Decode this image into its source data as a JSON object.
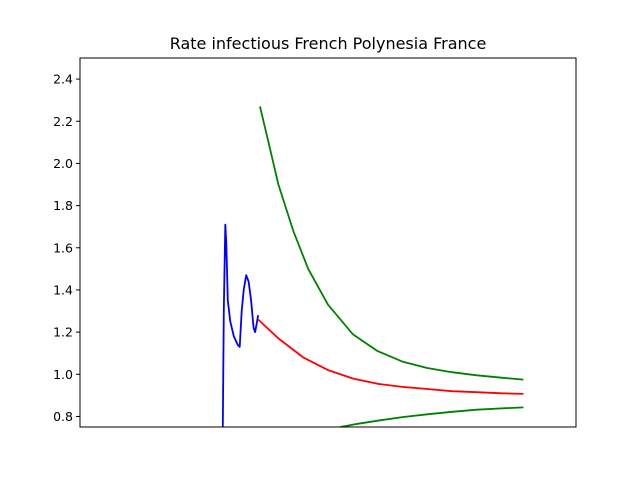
{
  "chart_data": {
    "type": "line",
    "title": "Rate infectious French Polynesia France",
    "xlabel": "",
    "ylabel": "",
    "xlim": [
      0,
      100
    ],
    "ylim": [
      0.75,
      2.5
    ],
    "x_ticks_visible": false,
    "y_ticks": [
      "0.8",
      "1.0",
      "1.2",
      "1.4",
      "1.6",
      "1.8",
      "2.0",
      "2.2",
      "2.4"
    ],
    "grid": false,
    "legend": "none",
    "series": [
      {
        "color": "#0000ff",
        "points": [
          [
            28.8,
            0.75
          ],
          [
            29.0,
            1.3
          ],
          [
            29.3,
            1.71
          ],
          [
            29.5,
            1.62
          ],
          [
            29.8,
            1.35
          ],
          [
            30.3,
            1.25
          ],
          [
            31.0,
            1.18
          ],
          [
            31.8,
            1.14
          ],
          [
            32.2,
            1.13
          ],
          [
            32.6,
            1.3
          ],
          [
            33.0,
            1.4
          ],
          [
            33.5,
            1.47
          ],
          [
            34.0,
            1.44
          ],
          [
            34.5,
            1.35
          ],
          [
            35.0,
            1.22
          ],
          [
            35.3,
            1.2
          ],
          [
            35.7,
            1.25
          ],
          [
            35.9,
            1.28
          ]
        ]
      },
      {
        "color": "#ff0000",
        "points": [
          [
            35.9,
            1.26
          ],
          [
            40,
            1.17
          ],
          [
            45,
            1.08
          ],
          [
            50,
            1.02
          ],
          [
            55,
            0.98
          ],
          [
            60,
            0.955
          ],
          [
            65,
            0.94
          ],
          [
            70,
            0.93
          ],
          [
            75,
            0.92
          ],
          [
            80,
            0.915
          ],
          [
            85,
            0.91
          ],
          [
            89.4,
            0.907
          ]
        ]
      },
      {
        "color": "#008000",
        "points": [
          [
            36.3,
            2.27
          ],
          [
            38,
            2.1
          ],
          [
            40,
            1.9
          ],
          [
            43,
            1.68
          ],
          [
            46,
            1.5
          ],
          [
            50,
            1.33
          ],
          [
            55,
            1.19
          ],
          [
            60,
            1.11
          ],
          [
            65,
            1.06
          ],
          [
            70,
            1.03
          ],
          [
            75,
            1.01
          ],
          [
            80,
            0.995
          ],
          [
            85,
            0.984
          ],
          [
            89.4,
            0.975
          ]
        ]
      },
      {
        "color": "#008000",
        "points": [
          [
            52.5,
            0.75
          ],
          [
            56,
            0.765
          ],
          [
            60,
            0.78
          ],
          [
            65,
            0.797
          ],
          [
            70,
            0.81
          ],
          [
            75,
            0.822
          ],
          [
            80,
            0.832
          ],
          [
            85,
            0.838
          ],
          [
            89.4,
            0.843
          ]
        ]
      }
    ]
  }
}
